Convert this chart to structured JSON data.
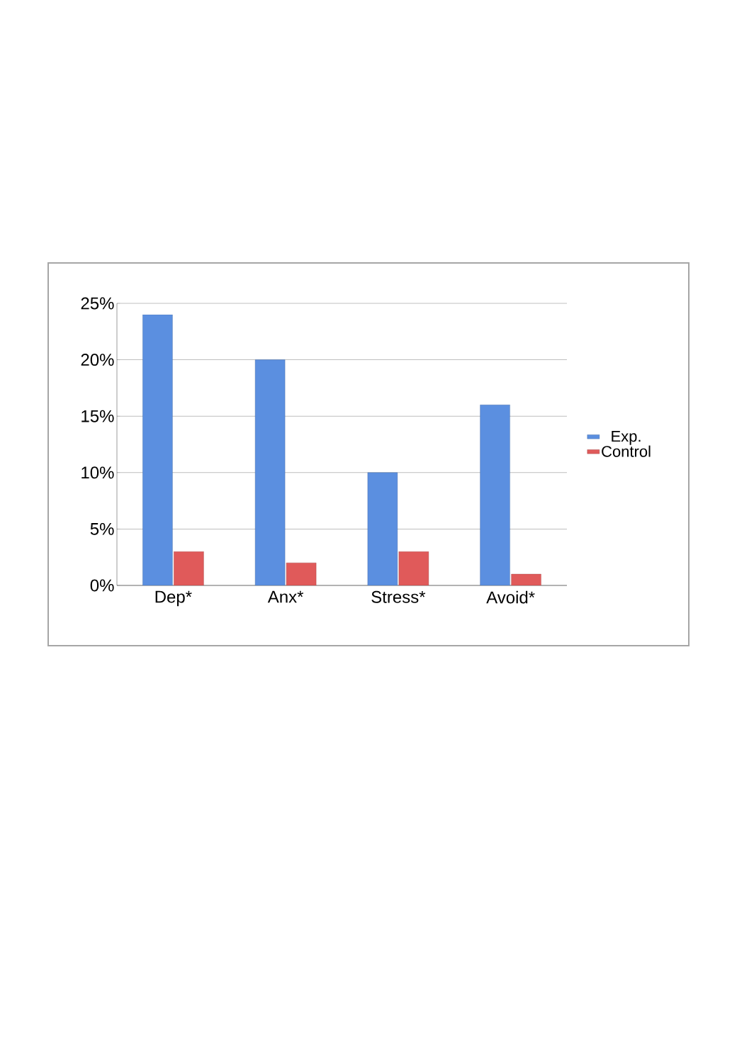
{
  "chart_data": {
    "type": "bar",
    "categories": [
      "Dep*",
      "Anx*",
      "Stress*",
      "Avoid*"
    ],
    "series": [
      {
        "name": "Exp.",
        "color": "#5b8fe0",
        "values": [
          24,
          20,
          10,
          16
        ]
      },
      {
        "name": "Control",
        "color": "#e05a5a",
        "values": [
          3,
          2,
          3,
          1
        ]
      }
    ],
    "ylim": [
      0,
      25
    ],
    "yticks": [
      {
        "value": 0,
        "label": "0%"
      },
      {
        "value": 5,
        "label": "5%"
      },
      {
        "value": 10,
        "label": "10%"
      },
      {
        "value": 15,
        "label": "15%"
      },
      {
        "value": 20,
        "label": "20%"
      },
      {
        "value": 25,
        "label": "25%"
      }
    ],
    "grid": "y",
    "legend": "right"
  }
}
